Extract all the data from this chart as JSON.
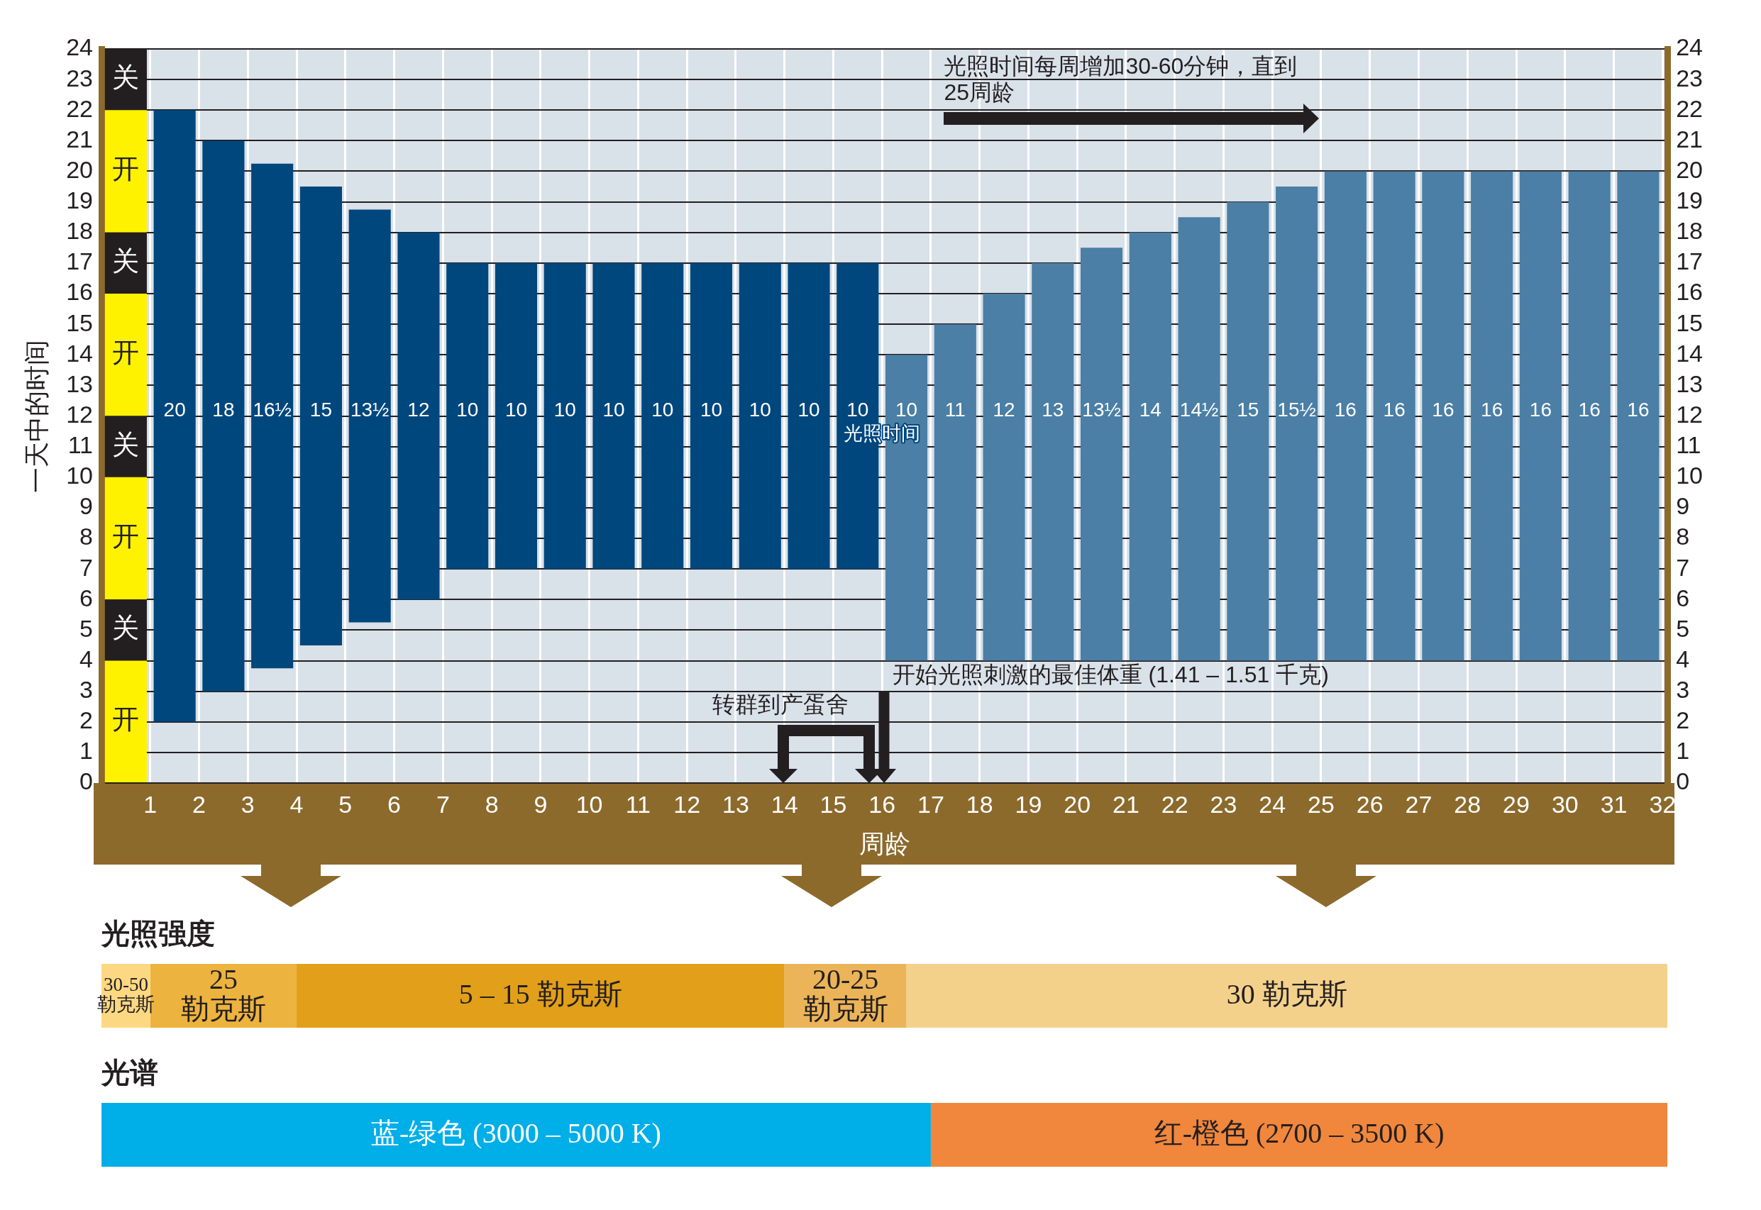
{
  "chart_data": [
    {
      "type": "bar",
      "xlabel": "周龄",
      "ylabel": "一天中的时间",
      "series": [
        {
          "x": [
            1.5,
            2.5,
            3.5,
            4.5,
            5.5,
            6.5,
            7.5,
            8.5,
            9.5,
            10.5,
            11.5,
            12.5,
            13.5,
            14.5,
            15.5,
            16.5,
            17.5,
            18.5,
            19.5,
            20.5,
            21.5,
            22.5,
            23.5,
            24.5,
            25.5,
            26.5,
            27.5,
            28.5,
            29.5,
            30.5,
            31.5
          ],
          "values": [
            20,
            18,
            16.5,
            15,
            13.5,
            12,
            10,
            10,
            10,
            10,
            10,
            10,
            10,
            10,
            10,
            10,
            11,
            12,
            13,
            13.5,
            14,
            14.5,
            15,
            15.5,
            16,
            16,
            16,
            16,
            16,
            16,
            16
          ],
          "base": [
            2,
            3,
            3.75,
            4.5,
            5.25,
            6,
            7,
            7,
            7,
            7,
            7,
            7,
            7,
            7,
            7,
            4,
            4,
            4,
            4,
            4,
            4,
            4,
            4,
            4,
            4,
            4,
            4,
            4,
            4,
            4,
            4
          ],
          "colors": [
            "#00477e",
            "#00477e",
            "#00477e",
            "#00477e",
            "#00477e",
            "#00477e",
            "#00477e",
            "#00477e",
            "#00477e",
            "#00477e",
            "#00477e",
            "#00477e",
            "#00477e",
            "#00477e",
            "#00477e",
            "#4b7fa5",
            "#4b7fa5",
            "#4b7fa5",
            "#4b7fa5",
            "#4b7fa5",
            "#4b7fa5",
            "#4b7fa5",
            "#4b7fa5",
            "#4b7fa5",
            "#4b7fa5",
            "#4b7fa5",
            "#4b7fa5",
            "#4b7fa5",
            "#4b7fa5",
            "#4b7fa5",
            "#4b7fa5"
          ],
          "value_labels": [
            "20",
            "18",
            "16½",
            "15",
            "13½",
            "12",
            "10",
            "10",
            "10",
            "10",
            "10",
            "10",
            "10",
            "10",
            "10",
            "10",
            "11",
            "12",
            "13",
            "13½",
            "14",
            "14½",
            "15",
            "15½",
            "16",
            "16",
            "16",
            "16",
            "16",
            "16",
            "16"
          ]
        },
        {
          "name": "开",
          "x": [
            0.5
          ],
          "base": [
            0
          ],
          "values": [
            4
          ],
          "color": "#fff200"
        },
        {
          "name": "关",
          "x": [
            0.5
          ],
          "base": [
            4
          ],
          "values": [
            2
          ],
          "color": "#231f20"
        },
        {
          "name": "开",
          "x": [
            0.5
          ],
          "base": [
            6
          ],
          "values": [
            4
          ],
          "color": "#fff200"
        },
        {
          "name": "关",
          "x": [
            0.5
          ],
          "base": [
            10
          ],
          "values": [
            2
          ],
          "color": "#231f20"
        },
        {
          "name": "开",
          "x": [
            0.5
          ],
          "base": [
            12
          ],
          "values": [
            4
          ],
          "color": "#fff200"
        },
        {
          "name": "关",
          "x": [
            0.5
          ],
          "base": [
            16
          ],
          "values": [
            2
          ],
          "color": "#231f20"
        },
        {
          "name": "开",
          "x": [
            0.5
          ],
          "base": [
            18
          ],
          "values": [
            4
          ],
          "color": "#fff200"
        },
        {
          "name": "关",
          "x": [
            0.5
          ],
          "base": [
            22
          ],
          "values": [
            2
          ],
          "color": "#231f20"
        }
      ],
      "xlim": [
        0,
        32.1
      ],
      "xticks": [
        1,
        2,
        3,
        4,
        5,
        6,
        7,
        8,
        9,
        10,
        11,
        12,
        13,
        14,
        15,
        16,
        17,
        18,
        19,
        20,
        21,
        22,
        23,
        24,
        25,
        26,
        27,
        28,
        29,
        30,
        31,
        32
      ],
      "ylim": [
        0,
        24
      ],
      "yticks": [
        0,
        1,
        2,
        3,
        4,
        5,
        6,
        7,
        8,
        9,
        10,
        11,
        12,
        13,
        14,
        15,
        16,
        17,
        18,
        19,
        20,
        21,
        22,
        23,
        24
      ],
      "y2lim": [
        0,
        24
      ],
      "y2ticks": [
        0,
        1,
        2,
        3,
        4,
        5,
        6,
        7,
        8,
        9,
        10,
        11,
        12,
        13,
        14,
        15,
        16,
        17,
        18,
        19,
        20,
        21,
        22,
        23,
        24
      ],
      "grid": true,
      "annotations": [
        "光照时间每周增加30-60分钟，直到\n25周龄",
        "开始光照刺激的最佳体重 (1.41 – 1.51 千克)",
        "转群到产蛋舍",
        "光照时间"
      ]
    },
    {
      "type": "bar",
      "orientation": "horizontal",
      "stacked": true,
      "categories": [
        "光照强度",
        "光谱"
      ],
      "series": [
        {
          "name": "30-50 勒克斯",
          "color": "#fdd882",
          "values": [
            1,
            null
          ]
        },
        {
          "name": "25 勒克斯",
          "color": "#edb33f",
          "values": [
            3,
            null
          ]
        },
        {
          "name": "5 – 15 勒克斯",
          "color": "#e29f1a",
          "values": [
            10,
            null
          ]
        },
        {
          "name": "20-25 勒克斯",
          "color": "#ebb459",
          "values": [
            2.5,
            null
          ]
        },
        {
          "name": "30 勒克斯",
          "color": "#f4d18b",
          "values": [
            15.6,
            null
          ]
        },
        {
          "name": "蓝-绿色 (3000 – 5000 K)",
          "color": "#00aee8",
          "values": [
            null,
            17
          ]
        },
        {
          "name": "红-橙色 (2700 – 3500 K)",
          "color": "#f0873d",
          "values": [
            null,
            15.1
          ]
        }
      ],
      "xlim": [
        0,
        32.1
      ],
      "tick_labels": "y"
    }
  ]
}
